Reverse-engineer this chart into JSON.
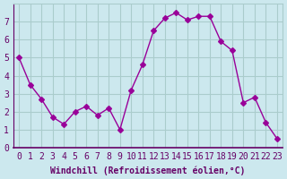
{
  "x": [
    0,
    1,
    2,
    3,
    4,
    5,
    6,
    7,
    8,
    9,
    10,
    11,
    12,
    13,
    14,
    15,
    16,
    17,
    18,
    19,
    20,
    21,
    22,
    23
  ],
  "y": [
    5.0,
    3.5,
    2.7,
    1.7,
    1.3,
    2.0,
    2.3,
    1.8,
    2.2,
    1.0,
    3.2,
    4.6,
    6.5,
    7.2,
    7.5,
    7.1,
    7.3,
    7.3,
    5.9,
    5.4,
    2.5,
    2.8,
    1.4,
    0.5
  ],
  "line_color": "#990099",
  "marker": "D",
  "marker_size": 3,
  "bg_color": "#cce8ee",
  "grid_color": "#aacccc",
  "xlabel": "Windchill (Refroidissement éolien,°C)",
  "xlim": [
    -0.5,
    23.5
  ],
  "ylim": [
    0,
    8
  ],
  "xticks": [
    0,
    1,
    2,
    3,
    4,
    5,
    6,
    7,
    8,
    9,
    10,
    11,
    12,
    13,
    14,
    15,
    16,
    17,
    18,
    19,
    20,
    21,
    22,
    23
  ],
  "yticks": [
    0,
    1,
    2,
    3,
    4,
    5,
    6,
    7
  ],
  "xlabel_fontsize": 7,
  "tick_fontsize": 7,
  "tick_color": "#660066",
  "axis_label_color": "#660066"
}
